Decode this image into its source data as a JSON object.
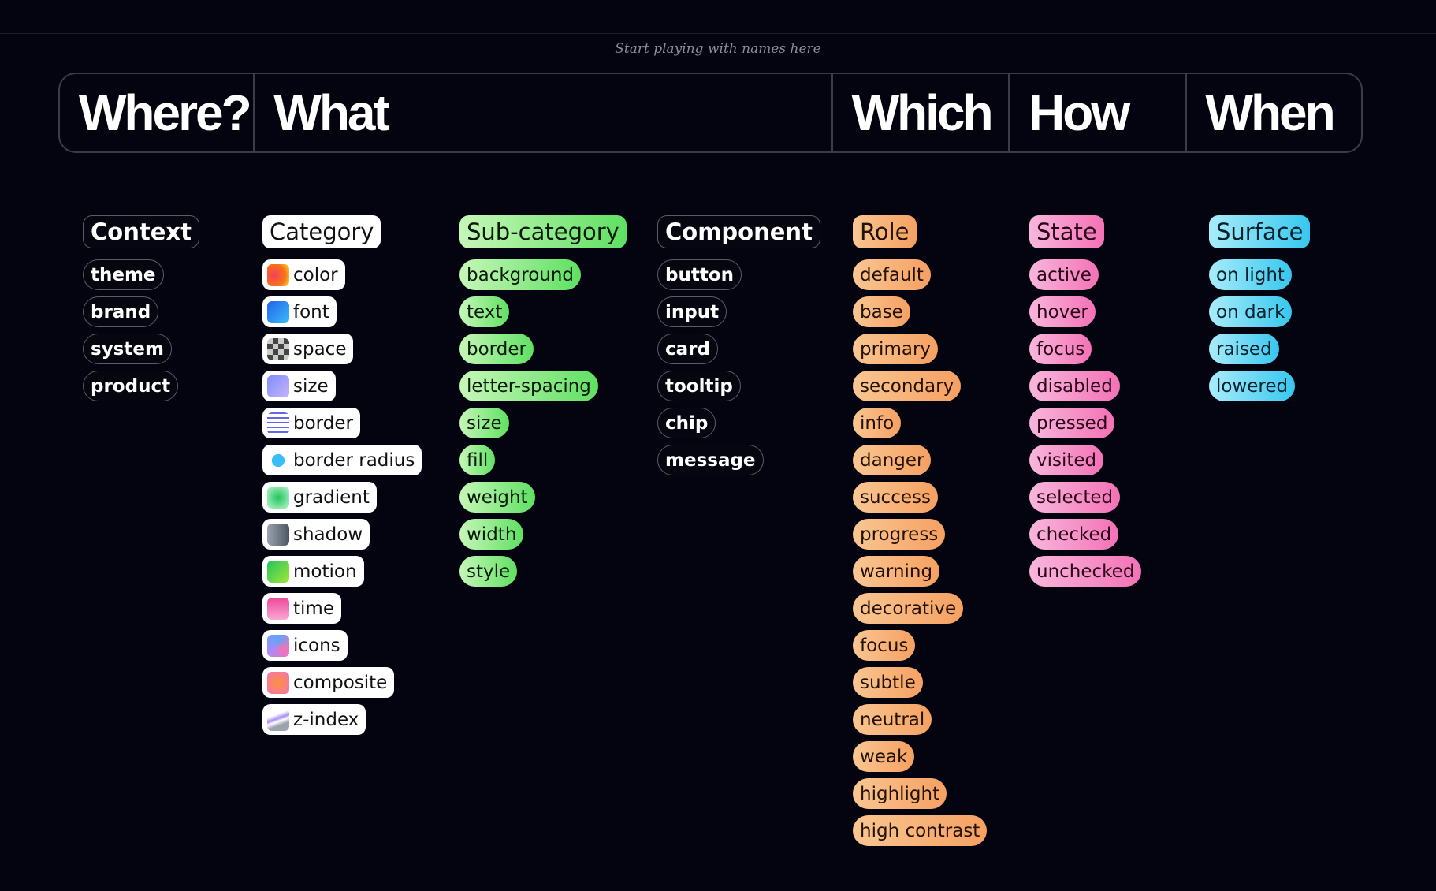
{
  "header": {
    "hint": "Start playing with names here",
    "columns": [
      "Where?",
      "What",
      "Which",
      "How",
      "When"
    ]
  },
  "columns": [
    {
      "title": "Context",
      "items": [
        "theme",
        "brand",
        "system",
        "product"
      ]
    },
    {
      "title": "Category",
      "items": [
        "color",
        "font",
        "space",
        "size",
        "border",
        "border radius",
        "gradient",
        "shadow",
        "motion",
        "time",
        "icons",
        "composite",
        "z-index"
      ]
    },
    {
      "title": "Sub-category",
      "items": [
        "background",
        "text",
        "border",
        "letter-spacing",
        "size",
        "fill",
        "weight",
        "width",
        "style"
      ]
    },
    {
      "title": "Component",
      "items": [
        "button",
        "input",
        "card",
        "tooltip",
        "chip",
        "message"
      ]
    },
    {
      "title": "Role",
      "items": [
        "default",
        "base",
        "primary",
        "secondary",
        "info",
        "danger",
        "success",
        "progress",
        "warning",
        "decorative",
        "focus",
        "subtle",
        "neutral",
        "weak",
        "highlight",
        "high contrast"
      ]
    },
    {
      "title": "State",
      "items": [
        "active",
        "hover",
        "focus",
        "disabled",
        "pressed",
        "visited",
        "selected",
        "checked",
        "unchecked"
      ]
    },
    {
      "title": "Surface",
      "items": [
        "on light",
        "on dark",
        "raised",
        "lowered"
      ]
    }
  ]
}
